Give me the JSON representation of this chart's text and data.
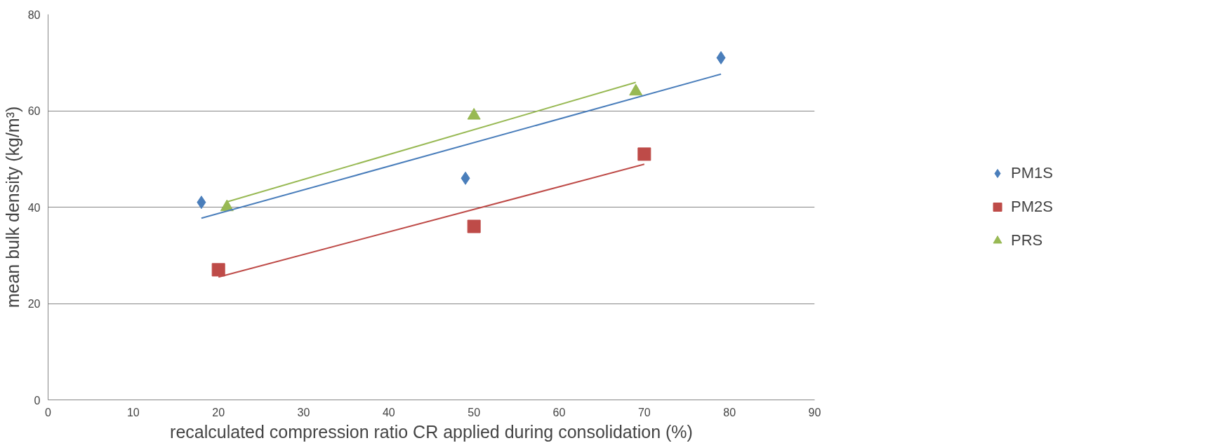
{
  "chart_data": {
    "type": "scatter",
    "xlabel": "recalculated compression ratio CR applied during consolidation (%)",
    "ylabel": "mean bulk density (kg/m³)",
    "xlim": [
      0,
      90
    ],
    "xticks": [
      0,
      10,
      20,
      30,
      40,
      50,
      60,
      70,
      80,
      90
    ],
    "ylim": [
      0,
      80
    ],
    "yticks": [
      0,
      20,
      40,
      60,
      80
    ],
    "grid": "y",
    "legend": "right",
    "series": [
      {
        "name": "PM1S",
        "color": "#4a7ebb",
        "marker": "diamond",
        "x": [
          18,
          49,
          79
        ],
        "values": [
          41,
          46,
          71
        ]
      },
      {
        "name": "PM2S",
        "color": "#be4b48",
        "marker": "square",
        "x": [
          20,
          50,
          70
        ],
        "values": [
          27,
          36,
          51
        ]
      },
      {
        "name": "PRS",
        "color": "#98b954",
        "marker": "triangle",
        "x": [
          21,
          50,
          69
        ],
        "values": [
          40,
          59,
          64
        ]
      },
      {
        "type": "line",
        "color": "#4a7ebb",
        "marker": "none",
        "x": [
          18,
          79
        ],
        "values": [
          37.7,
          67.6
        ]
      },
      {
        "type": "line",
        "color": "#be4b48",
        "marker": "none",
        "x": [
          20,
          70
        ],
        "values": [
          25.5,
          48.9
        ]
      },
      {
        "type": "line",
        "color": "#98b954",
        "marker": "none",
        "x": [
          21,
          69
        ],
        "values": [
          41.1,
          65.9
        ]
      }
    ]
  }
}
